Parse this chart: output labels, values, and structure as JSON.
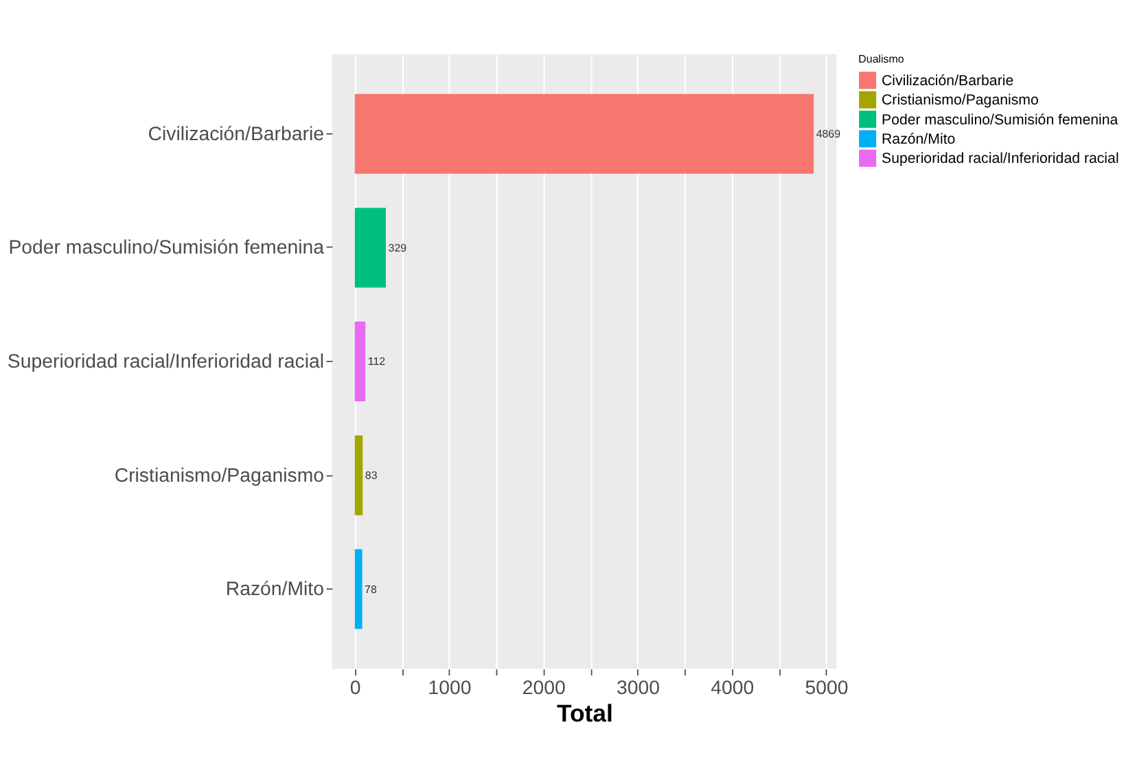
{
  "chart_data": {
    "type": "bar",
    "orientation": "horizontal",
    "xlabel": "Total",
    "legend_title": "Dualismo",
    "legend": "right",
    "grid": "x",
    "data_labels": true,
    "categories": [
      "Civilización/Barbarie",
      "Poder masculino/Sumisión femenina",
      "Superioridad racial/Inferioridad racial",
      "Cristianismo/Paganismo",
      "Razón/Mito"
    ],
    "series": [
      {
        "name": "Civilización/Barbarie",
        "color": "#f8766d",
        "values": [
          4869,
          null,
          null,
          null,
          null
        ]
      },
      {
        "name": "Cristianismo/Paganismo",
        "color": "#a3a500",
        "values": [
          null,
          null,
          null,
          83,
          null
        ]
      },
      {
        "name": "Poder masculino/Sumisión femenina",
        "color": "#00bf7d",
        "values": [
          null,
          329,
          null,
          null,
          null
        ]
      },
      {
        "name": "Razón/Mito",
        "color": "#00b0f6",
        "values": [
          null,
          null,
          null,
          null,
          78
        ]
      },
      {
        "name": "Superioridad racial/Inferioridad racial",
        "color": "#e76bf3",
        "values": [
          null,
          null,
          112,
          null,
          null
        ]
      }
    ],
    "xlim": [
      -243,
      5112
    ],
    "xticks": [
      0,
      {
        "value": 500,
        "label": null
      },
      1000,
      {
        "value": 1500,
        "label": null
      },
      2000,
      {
        "value": 2500,
        "label": null
      },
      3000,
      {
        "value": 3500,
        "label": null
      },
      4000,
      {
        "value": 4500,
        "label": null
      },
      5000
    ]
  }
}
